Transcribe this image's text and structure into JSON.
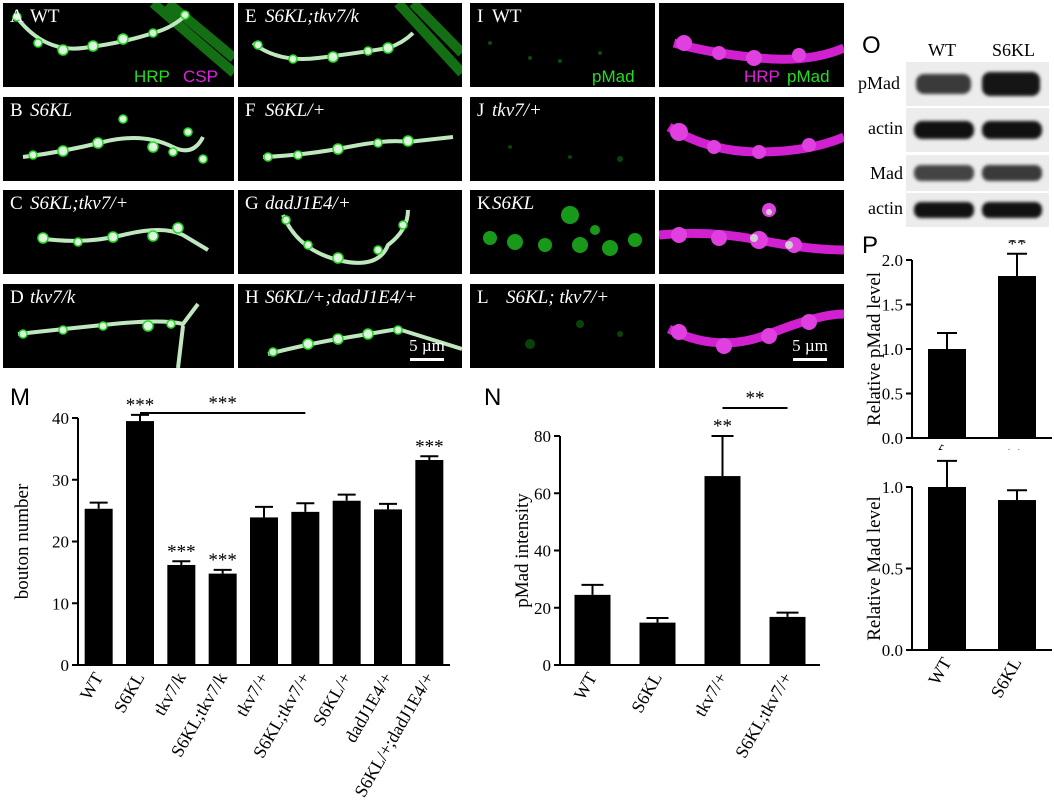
{
  "microscopy": {
    "A": {
      "letter": "A",
      "genotype": "WT",
      "channels": [
        "HRP",
        "CSP"
      ]
    },
    "B": {
      "letter": "B",
      "genotype": "S6KL"
    },
    "C": {
      "letter": "C",
      "genotype": "S6KL;tkv7/+"
    },
    "D": {
      "letter": "D",
      "genotype": "tkv7/k"
    },
    "E": {
      "letter": "E",
      "genotype": "S6KL;tkv7/k"
    },
    "F": {
      "letter": "F",
      "genotype": "S6KL/+"
    },
    "G": {
      "letter": "G",
      "genotype": "dadJ1E4/+"
    },
    "H": {
      "letter": "H",
      "genotype": "S6KL/+;dadJ1E4/+",
      "scale": "5 µm"
    },
    "I": {
      "letter": "I",
      "genotype": "WT",
      "single": "pMad",
      "merge": [
        "HRP",
        "pMad"
      ]
    },
    "J": {
      "letter": "J",
      "genotype": "tkv7/+"
    },
    "K": {
      "letter": "K",
      "genotype": "S6KL"
    },
    "L": {
      "letter": "L",
      "genotype": "S6KL; tkv7/+",
      "scale": "5 µm"
    }
  },
  "colors": {
    "green": "#22dd22",
    "magenta": "#e020e0",
    "bar": "#000000"
  },
  "western": {
    "letter": "O",
    "lanes": [
      "WT",
      "S6KL"
    ],
    "rows": [
      "pMad",
      "actin",
      "Mad",
      "actin"
    ]
  },
  "panel_M": {
    "letter": "M",
    "chart_data": {
      "type": "bar",
      "ylabel": "bouton number",
      "ylim": [
        0,
        40
      ],
      "yticks": [
        0,
        10,
        20,
        30,
        40
      ],
      "categories": [
        "WT",
        "S6KL",
        "tkv7/k",
        "S6KL;tkv7/k",
        "tkv7/+",
        "S6KL;tkv7/+",
        "S6KL/+",
        "dadJ1E4/+",
        "S6KL/+;dadJ1E4/+"
      ],
      "values": [
        25.3,
        39.5,
        16.2,
        14.8,
        23.9,
        24.8,
        26.6,
        25.2,
        33.2
      ],
      "errors": [
        1.0,
        1.0,
        0.6,
        0.6,
        1.7,
        1.4,
        1.0,
        0.9,
        0.6
      ],
      "stars": [
        "",
        "***",
        "***",
        "***",
        "",
        "",
        "",
        "",
        "***"
      ],
      "bracket": {
        "from": 1,
        "to": 5,
        "label": "***"
      }
    }
  },
  "panel_N": {
    "letter": "N",
    "chart_data": {
      "type": "bar",
      "ylabel": "pMad intensity",
      "ylim": [
        0,
        80
      ],
      "yticks": [
        0,
        20,
        40,
        60,
        80
      ],
      "categories": [
        "WT",
        "S6KL",
        "tkv7/+",
        "S6KL;tkv7/+"
      ],
      "values": [
        24.5,
        14.8,
        66.0,
        16.8
      ],
      "errors": [
        3.5,
        1.6,
        14.0,
        1.5
      ],
      "stars": [
        "",
        "",
        "**",
        ""
      ],
      "bracket": {
        "from": 2,
        "to": 3,
        "label": "**"
      }
    }
  },
  "panel_P": {
    "letter": "P",
    "chart_data": [
      {
        "type": "bar",
        "ylabel": "Relative pMad level",
        "ylim": [
          0,
          2.0
        ],
        "yticks": [
          "0.0",
          "0.5",
          "1.0",
          "1.5",
          "2.0"
        ],
        "categories": [
          "WT",
          "S6KL"
        ],
        "values": [
          1.0,
          1.82
        ],
        "errors": [
          0.18,
          0.25
        ],
        "stars": [
          "",
          "**"
        ]
      },
      {
        "type": "bar",
        "ylabel": "Relative Mad level",
        "ylim": [
          0,
          1.0
        ],
        "yticks": [
          "0.0",
          "0.5",
          "1.0"
        ],
        "categories": [
          "WT",
          "S6KL"
        ],
        "values": [
          1.0,
          0.92
        ],
        "errors": [
          0.16,
          0.06
        ],
        "stars": [
          "",
          ""
        ]
      }
    ]
  }
}
